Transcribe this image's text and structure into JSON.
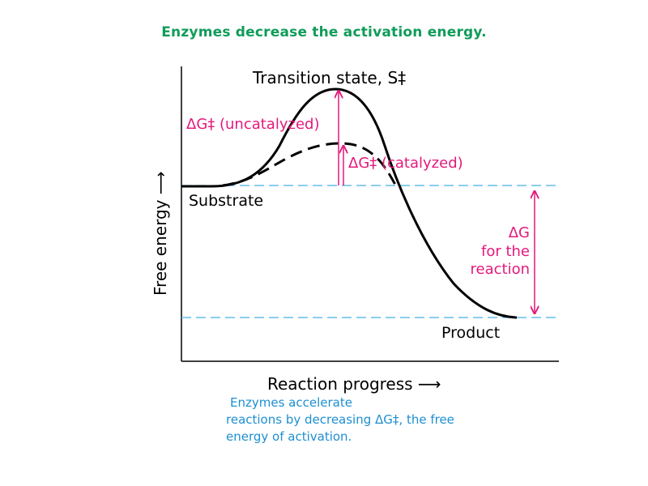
{
  "slide": {
    "title": "Enzymes decrease the activation energy."
  },
  "diagram": {
    "y_axis_label": "Free energy ⟶",
    "x_axis_label": "Reaction progress ⟶",
    "transition_state_label": "Transition state, S‡",
    "substrate_label": "Substrate",
    "product_label": "Product",
    "uncatalyzed_label": "ΔG‡ (uncatalyzed)",
    "catalyzed_label": "ΔG‡ (catalyzed)",
    "delta_g_label": {
      "line1": "ΔG",
      "line2": "for the",
      "line3": "reaction"
    },
    "colors": {
      "title": "#109c5a",
      "curve": "#000000",
      "annotation": "#e4197c",
      "guide_line": "#45b0e5",
      "caption": "#1e8fd0"
    }
  },
  "caption": {
    "line1": "Enzymes accelerate",
    "line2": "reactions by decreasing ΔG‡, the free",
    "line3": "energy of activation."
  }
}
